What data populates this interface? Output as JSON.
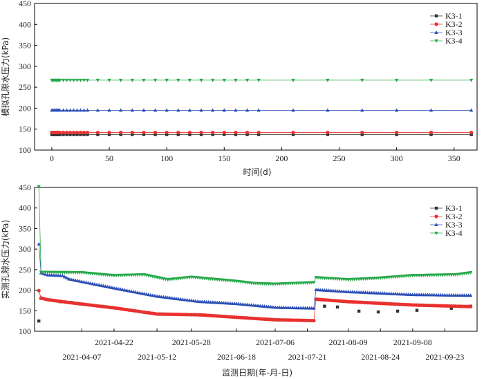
{
  "colors": {
    "K3-1": "#333333",
    "K3-2": "#e8312f",
    "K3-3": "#2b4fb5",
    "K3-4": "#27a84a"
  },
  "chart_data": [
    {
      "type": "line",
      "xlabel": "时间(d)",
      "ylabel": "模拟孔隙水压力(kPa)",
      "xlim": [
        -15,
        370
      ],
      "ylim": [
        100,
        450
      ],
      "xticks": [
        0,
        50,
        100,
        150,
        200,
        250,
        300,
        350
      ],
      "yticks": [
        100,
        150,
        200,
        250,
        300,
        350,
        400,
        450
      ],
      "legend": "top-right",
      "grid": false,
      "x": [
        0,
        1,
        2,
        3,
        4,
        5,
        6,
        7,
        10,
        13,
        16,
        19,
        22,
        25,
        28,
        31,
        40,
        50,
        60,
        70,
        80,
        90,
        100,
        110,
        120,
        130,
        140,
        150,
        160,
        170,
        180,
        210,
        240,
        270,
        300,
        330,
        365
      ],
      "series": [
        {
          "name": "K3-1",
          "marker": "square",
          "constant": 137
        },
        {
          "name": "K3-2",
          "marker": "circle",
          "constant": 142
        },
        {
          "name": "K3-3",
          "marker": "triangle-up",
          "constant": 195
        },
        {
          "name": "K3-4",
          "marker": "triangle-down",
          "constant": 267
        }
      ]
    },
    {
      "type": "line",
      "xlabel": "监测日期(年-月-日)",
      "ylabel": "实测孔隙水压力(kPa)",
      "ylim": [
        100,
        450
      ],
      "yticks": [
        100,
        150,
        200,
        250,
        300,
        350,
        400,
        450
      ],
      "x_is_date": true,
      "xlim": [
        "2021-03-16",
        "2021-10-08"
      ],
      "xticks_upper": [
        "2021-04-22",
        "2021-05-28",
        "2021-07-06",
        "2021-08-09",
        "2021-09-08"
      ],
      "xticks_lower": [
        "2021-04-07",
        "2021-05-12",
        "2021-06-18",
        "2021-07-21",
        "2021-08-24",
        "2021-09-23"
      ],
      "legend": "top-right",
      "grid": false,
      "series": [
        {
          "name": "K3-1",
          "marker": "square",
          "points": [
            [
              "2021-03-18",
              125
            ],
            [
              "2021-03-19",
              180
            ],
            [
              "2021-03-28",
              172
            ],
            [
              "2021-04-02",
              170
            ],
            [
              "2021-07-29",
              161
            ],
            [
              "2021-08-04",
              159
            ],
            [
              "2021-08-14",
              149
            ],
            [
              "2021-08-23",
              147
            ],
            [
              "2021-09-01",
              149
            ],
            [
              "2021-09-10",
              151
            ],
            [
              "2021-09-26",
              156
            ],
            [
              "2021-10-05",
              161
            ]
          ]
        },
        {
          "name": "K3-2",
          "marker": "circle",
          "points": [
            [
              "2021-03-18",
              199
            ],
            [
              "2021-03-19",
              181
            ],
            [
              "2021-03-22",
              177
            ],
            [
              "2021-04-01",
              170
            ],
            [
              "2021-04-22",
              157
            ],
            [
              "2021-05-12",
              142
            ],
            [
              "2021-06-01",
              140
            ],
            [
              "2021-06-18",
              134
            ],
            [
              "2021-07-06",
              128
            ],
            [
              "2021-07-24",
              126
            ],
            [
              "2021-07-25",
              178
            ],
            [
              "2021-08-09",
              172
            ],
            [
              "2021-09-08",
              164
            ],
            [
              "2021-10-05",
              160
            ]
          ]
        },
        {
          "name": "K3-3",
          "marker": "triangle-up",
          "points": [
            [
              "2021-03-18",
              312
            ],
            [
              "2021-03-19",
              242
            ],
            [
              "2021-03-22",
              237
            ],
            [
              "2021-03-29",
              235
            ],
            [
              "2021-04-01",
              227
            ],
            [
              "2021-04-20",
              207
            ],
            [
              "2021-05-12",
              185
            ],
            [
              "2021-06-01",
              172
            ],
            [
              "2021-06-18",
              167
            ],
            [
              "2021-07-06",
              158
            ],
            [
              "2021-07-24",
              156
            ],
            [
              "2021-07-25",
              201
            ],
            [
              "2021-08-09",
              196
            ],
            [
              "2021-09-08",
              189
            ],
            [
              "2021-10-05",
              187
            ]
          ]
        },
        {
          "name": "K3-4",
          "marker": "triangle-down",
          "points": [
            [
              "2021-03-18",
              452
            ],
            [
              "2021-03-19",
              244
            ],
            [
              "2021-04-07",
              243
            ],
            [
              "2021-04-22",
              236
            ],
            [
              "2021-05-06",
              238
            ],
            [
              "2021-05-17",
              226
            ],
            [
              "2021-05-28",
              232
            ],
            [
              "2021-06-18",
              222
            ],
            [
              "2021-06-26",
              217
            ],
            [
              "2021-07-06",
              215
            ],
            [
              "2021-07-24",
              219
            ],
            [
              "2021-07-25",
              231
            ],
            [
              "2021-08-09",
              226
            ],
            [
              "2021-08-24",
              230
            ],
            [
              "2021-09-08",
              236
            ],
            [
              "2021-09-28",
              238
            ],
            [
              "2021-10-05",
              243
            ]
          ]
        }
      ]
    }
  ]
}
